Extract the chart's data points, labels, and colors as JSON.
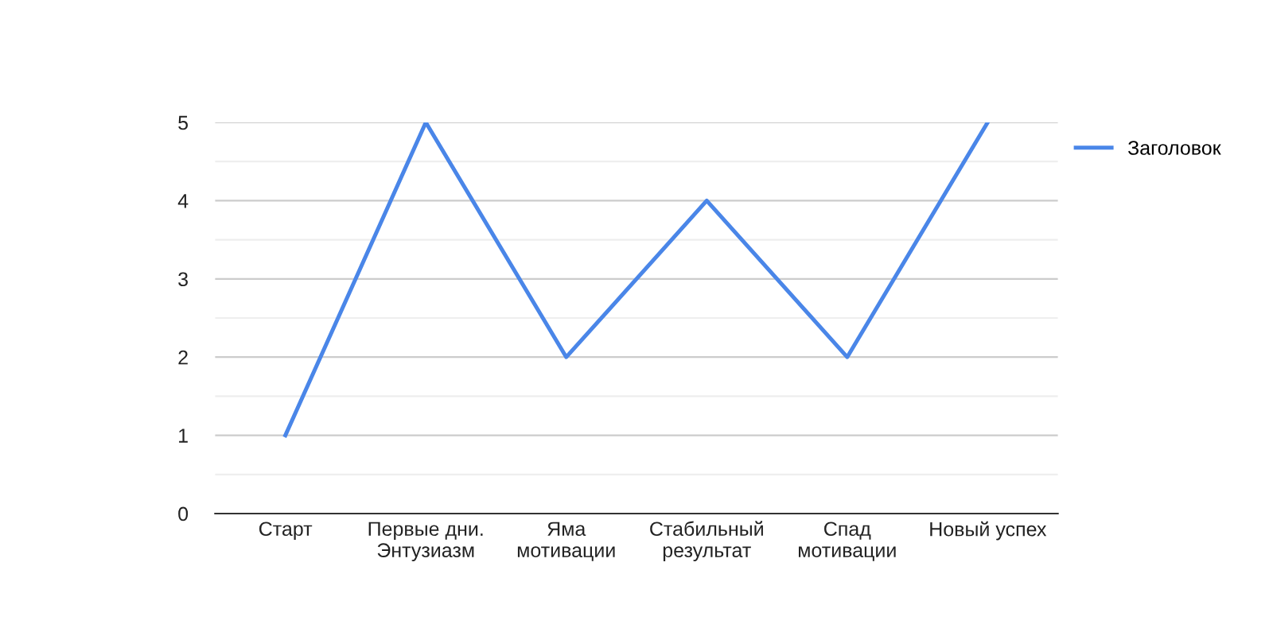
{
  "chart_data": {
    "type": "line",
    "categories": [
      "Старт",
      "Первые дни.\nЭнтузиазм",
      "Яма\nмотивации",
      "Стабильный\nрезультат",
      "Спад\nмотивации",
      "Новый успех"
    ],
    "series": [
      {
        "name": "Заголовок",
        "color": "#4a86e8",
        "values": [
          1,
          5,
          2,
          4,
          2,
          5
        ]
      }
    ],
    "ylim": [
      0,
      5
    ],
    "yticks": [
      0,
      1,
      2,
      3,
      4,
      5
    ],
    "grid": "y",
    "legend": "right",
    "marker": "none",
    "line_style": "solid"
  }
}
